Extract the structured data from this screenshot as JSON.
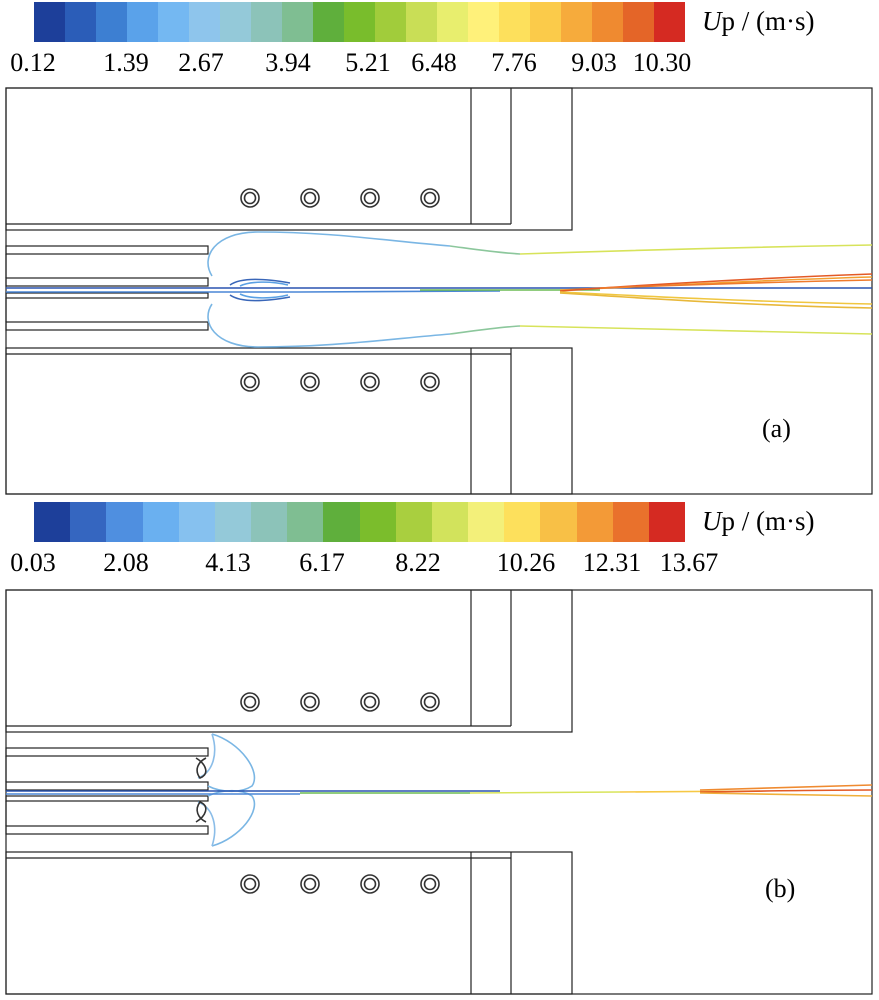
{
  "panels": [
    {
      "id": "a",
      "label": "(a)",
      "colorbar": {
        "unit_symbol": "U",
        "unit_rest": "p / (m·s)",
        "colors": [
          "#1d3f9a",
          "#2b5db8",
          "#3d7fd2",
          "#5aa2ea",
          "#74b8f2",
          "#8ec5ec",
          "#94c9d9",
          "#8cc3b9",
          "#7fbe92",
          "#5faf3c",
          "#79bd2c",
          "#a1cc3b",
          "#c9de56",
          "#e8ee6e",
          "#fff17a",
          "#fde05c",
          "#fbcb4a",
          "#f6ab3c",
          "#ef8a30",
          "#e46528",
          "#d52a22"
        ],
        "ticks": [
          "0.12",
          "1.39",
          "2.67",
          "3.94",
          "5.21",
          "6.48",
          "7.76",
          "9.03",
          "10.30"
        ]
      }
    },
    {
      "id": "b",
      "label": "(b)",
      "colorbar": {
        "unit_symbol": "U",
        "unit_rest": "p / (m·s)",
        "colors": [
          "#1d3f9a",
          "#3566c0",
          "#4f8fe0",
          "#6ab0f0",
          "#86c1ef",
          "#94c9d9",
          "#8cc3b9",
          "#7fbe92",
          "#5faf3c",
          "#7bbd2c",
          "#a9cf3f",
          "#d2e35c",
          "#f3f07a",
          "#fde05c",
          "#f8c046",
          "#f39a37",
          "#e9712c",
          "#d52a22"
        ],
        "ticks": [
          "0.03",
          "2.08",
          "4.13",
          "6.17",
          "8.22",
          "10.26",
          "12.31",
          "13.67"
        ]
      }
    }
  ]
}
